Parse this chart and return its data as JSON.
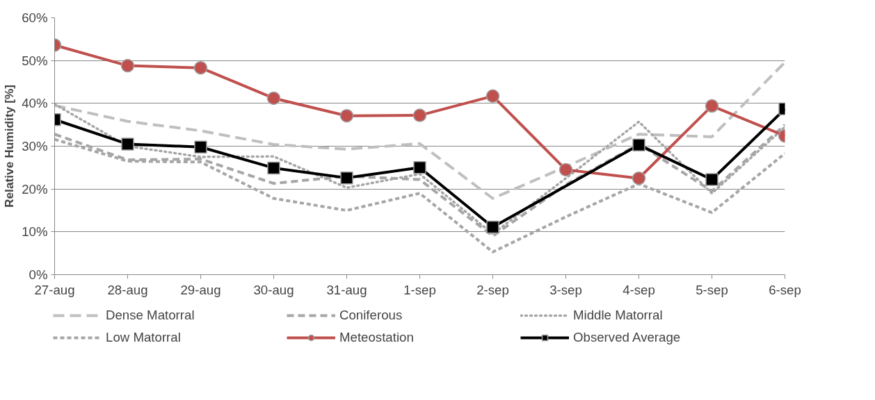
{
  "chart_data": {
    "type": "line",
    "ylabel": "Relative Humidity [%]",
    "categories": [
      "27-aug",
      "28-aug",
      "29-aug",
      "30-aug",
      "31-aug",
      "1-sep",
      "2-sep",
      "3-sep",
      "4-sep",
      "5-sep",
      "6-sep"
    ],
    "series": [
      {
        "name": "Dense Matorral",
        "color": "#bfbfbf",
        "line_style": "dashed",
        "marker": "none",
        "values": [
          39.5,
          35.8,
          33.6,
          30.4,
          29.3,
          30.6,
          17.8,
          25.2,
          32.8,
          32.2,
          49.6
        ]
      },
      {
        "name": "Coniferous",
        "color": "#a6a6a6",
        "line_style": "dashed",
        "marker": "none",
        "values": [
          32.8,
          26.8,
          27.0,
          21.3,
          23.0,
          22.2,
          9.0,
          21.0,
          30.5,
          19.5,
          35.0
        ]
      },
      {
        "name": "Middle Matorral",
        "color": "#a6a6a6",
        "line_style": "dotted",
        "marker": "none",
        "values": [
          39.8,
          30.0,
          27.5,
          27.6,
          20.3,
          23.5,
          9.5,
          22.5,
          35.7,
          19.0,
          34.5
        ]
      },
      {
        "name": "Low Matorral",
        "color": "#a6a6a6",
        "line_style": "dashed",
        "marker": "none",
        "values": [
          31.6,
          26.5,
          26.3,
          17.8,
          15.0,
          19.0,
          5.3,
          13.5,
          21.2,
          14.5,
          28.3
        ]
      },
      {
        "name": "Meteostation",
        "color": "#c0504d",
        "line_style": "solid",
        "marker": "circle",
        "values": [
          53.6,
          48.8,
          48.3,
          41.2,
          37.1,
          37.2,
          41.7,
          24.5,
          22.5,
          39.4,
          32.4
        ]
      },
      {
        "name": "Observed Average",
        "color": "#000000",
        "line_style": "solid",
        "marker": "square",
        "values": [
          36.2,
          30.5,
          29.8,
          24.9,
          22.6,
          25.0,
          11.1,
          null,
          30.3,
          22.2,
          38.7
        ]
      }
    ],
    "ylim": [
      0,
      60
    ],
    "yticks": [
      {
        "value": 0,
        "label": "0%"
      },
      {
        "value": 10,
        "label": "10%"
      },
      {
        "value": 20,
        "label": "20%"
      },
      {
        "value": 30,
        "label": "30%"
      },
      {
        "value": 40,
        "label": "40%"
      },
      {
        "value": 50,
        "label": "50%"
      },
      {
        "value": 60,
        "label": "60%"
      }
    ],
    "grid": "y",
    "legend": "bottom"
  }
}
